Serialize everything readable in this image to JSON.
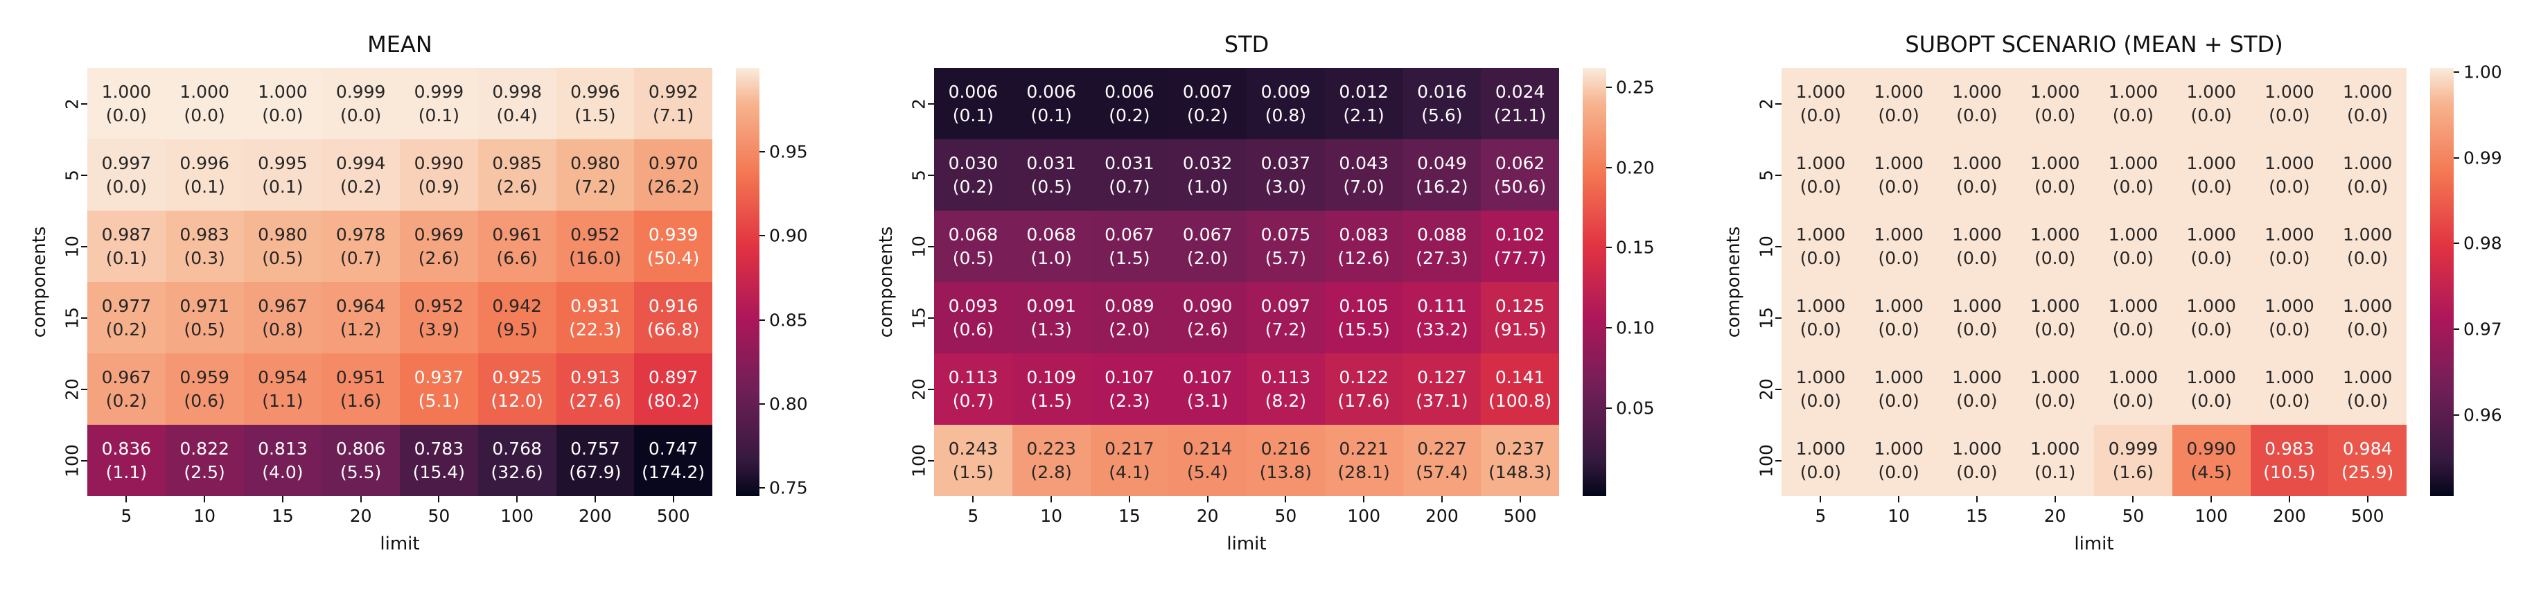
{
  "figure": {
    "background": "#ffffff"
  },
  "colormap": {
    "name": "rocket",
    "anchors": [
      [
        0.0,
        "#03051A"
      ],
      [
        0.083,
        "#35193E"
      ],
      [
        0.25,
        "#701F57"
      ],
      [
        0.417,
        "#AD1759"
      ],
      [
        0.583,
        "#E13342"
      ],
      [
        0.75,
        "#F37651"
      ],
      [
        0.917,
        "#F6B48F"
      ],
      [
        1.0,
        "#FAEBDD"
      ]
    ],
    "dark_text_color": "#262626",
    "light_text_color": "#ffffff",
    "text_switch_threshold": 0.764
  },
  "chart_data": {
    "type": "heatmap",
    "layout": "three panels side by side, shared axes categories, colorbar right of each panel",
    "x_categories": [
      "5",
      "10",
      "15",
      "20",
      "50",
      "100",
      "200",
      "500"
    ],
    "y_categories": [
      "2",
      "5",
      "10",
      "15",
      "20",
      "100"
    ],
    "annotation_format": "each cell shows value on line 1 and a parenthesized value on line 2",
    "panels": [
      {
        "title": "MEAN",
        "xlabel": "limit",
        "ylabel": "components",
        "values": [
          [
            "1.000",
            "1.000",
            "1.000",
            "0.999",
            "0.999",
            "0.998",
            "0.996",
            "0.992"
          ],
          [
            "0.997",
            "0.996",
            "0.995",
            "0.994",
            "0.990",
            "0.985",
            "0.980",
            "0.970"
          ],
          [
            "0.987",
            "0.983",
            "0.980",
            "0.978",
            "0.969",
            "0.961",
            "0.952",
            "0.939"
          ],
          [
            "0.977",
            "0.971",
            "0.967",
            "0.964",
            "0.952",
            "0.942",
            "0.931",
            "0.916"
          ],
          [
            "0.967",
            "0.959",
            "0.954",
            "0.951",
            "0.937",
            "0.925",
            "0.913",
            "0.897"
          ],
          [
            "0.836",
            "0.822",
            "0.813",
            "0.806",
            "0.783",
            "0.768",
            "0.757",
            "0.747"
          ]
        ],
        "annotations_line2": [
          [
            "(0.0)",
            "(0.0)",
            "(0.0)",
            "(0.0)",
            "(0.1)",
            "(0.4)",
            "(1.5)",
            "(7.1)"
          ],
          [
            "(0.0)",
            "(0.1)",
            "(0.1)",
            "(0.2)",
            "(0.9)",
            "(2.6)",
            "(7.2)",
            "(26.2)"
          ],
          [
            "(0.1)",
            "(0.3)",
            "(0.5)",
            "(0.7)",
            "(2.6)",
            "(6.6)",
            "(16.0)",
            "(50.4)"
          ],
          [
            "(0.2)",
            "(0.5)",
            "(0.8)",
            "(1.2)",
            "(3.9)",
            "(9.5)",
            "(22.3)",
            "(66.8)"
          ],
          [
            "(0.2)",
            "(0.6)",
            "(1.1)",
            "(1.6)",
            "(5.1)",
            "(12.0)",
            "(27.6)",
            "(80.2)"
          ],
          [
            "(1.1)",
            "(2.5)",
            "(4.0)",
            "(5.5)",
            "(15.4)",
            "(32.6)",
            "(67.9)",
            "(174.2)"
          ]
        ],
        "colorbar": {
          "vmin": 0.745,
          "vmax": 1.0,
          "ticks": [
            "0.95",
            "0.90",
            "0.85",
            "0.80",
            "0.75"
          ]
        }
      },
      {
        "title": "STD",
        "xlabel": "limit",
        "ylabel": "components",
        "values": [
          [
            "0.006",
            "0.006",
            "0.006",
            "0.007",
            "0.009",
            "0.012",
            "0.016",
            "0.024"
          ],
          [
            "0.030",
            "0.031",
            "0.031",
            "0.032",
            "0.037",
            "0.043",
            "0.049",
            "0.062"
          ],
          [
            "0.068",
            "0.068",
            "0.067",
            "0.067",
            "0.075",
            "0.083",
            "0.088",
            "0.102"
          ],
          [
            "0.093",
            "0.091",
            "0.089",
            "0.090",
            "0.097",
            "0.105",
            "0.111",
            "0.125"
          ],
          [
            "0.113",
            "0.109",
            "0.107",
            "0.107",
            "0.113",
            "0.122",
            "0.127",
            "0.141"
          ],
          [
            "0.243",
            "0.223",
            "0.217",
            "0.214",
            "0.216",
            "0.221",
            "0.227",
            "0.237"
          ]
        ],
        "annotations_line2": [
          [
            "(0.1)",
            "(0.1)",
            "(0.2)",
            "(0.2)",
            "(0.8)",
            "(2.1)",
            "(5.6)",
            "(21.1)"
          ],
          [
            "(0.2)",
            "(0.5)",
            "(0.7)",
            "(1.0)",
            "(3.0)",
            "(7.0)",
            "(16.2)",
            "(50.6)"
          ],
          [
            "(0.5)",
            "(1.0)",
            "(1.5)",
            "(2.0)",
            "(5.7)",
            "(12.6)",
            "(27.3)",
            "(77.7)"
          ],
          [
            "(0.6)",
            "(1.3)",
            "(2.0)",
            "(2.6)",
            "(7.2)",
            "(15.5)",
            "(33.2)",
            "(91.5)"
          ],
          [
            "(0.7)",
            "(1.5)",
            "(2.3)",
            "(3.1)",
            "(8.2)",
            "(17.6)",
            "(37.1)",
            "(100.8)"
          ],
          [
            "(1.5)",
            "(2.8)",
            "(4.1)",
            "(5.4)",
            "(13.8)",
            "(28.1)",
            "(57.4)",
            "(148.3)"
          ]
        ],
        "colorbar": {
          "vmin": -0.005,
          "vmax": 0.262,
          "ticks": [
            "0.25",
            "0.20",
            "0.15",
            "0.10",
            "0.05"
          ]
        }
      },
      {
        "title": "SUBOPT SCENARIO (MEAN + STD)",
        "xlabel": "limit",
        "ylabel": "components",
        "values": [
          [
            "1.000",
            "1.000",
            "1.000",
            "1.000",
            "1.000",
            "1.000",
            "1.000",
            "1.000"
          ],
          [
            "1.000",
            "1.000",
            "1.000",
            "1.000",
            "1.000",
            "1.000",
            "1.000",
            "1.000"
          ],
          [
            "1.000",
            "1.000",
            "1.000",
            "1.000",
            "1.000",
            "1.000",
            "1.000",
            "1.000"
          ],
          [
            "1.000",
            "1.000",
            "1.000",
            "1.000",
            "1.000",
            "1.000",
            "1.000",
            "1.000"
          ],
          [
            "1.000",
            "1.000",
            "1.000",
            "1.000",
            "1.000",
            "1.000",
            "1.000",
            "1.000"
          ],
          [
            "1.000",
            "1.000",
            "1.000",
            "1.000",
            "0.999",
            "0.990",
            "0.983",
            "0.984"
          ]
        ],
        "annotations_line2": [
          [
            "(0.0)",
            "(0.0)",
            "(0.0)",
            "(0.0)",
            "(0.0)",
            "(0.0)",
            "(0.0)",
            "(0.0)"
          ],
          [
            "(0.0)",
            "(0.0)",
            "(0.0)",
            "(0.0)",
            "(0.0)",
            "(0.0)",
            "(0.0)",
            "(0.0)"
          ],
          [
            "(0.0)",
            "(0.0)",
            "(0.0)",
            "(0.0)",
            "(0.0)",
            "(0.0)",
            "(0.0)",
            "(0.0)"
          ],
          [
            "(0.0)",
            "(0.0)",
            "(0.0)",
            "(0.0)",
            "(0.0)",
            "(0.0)",
            "(0.0)",
            "(0.0)"
          ],
          [
            "(0.0)",
            "(0.0)",
            "(0.0)",
            "(0.0)",
            "(0.0)",
            "(0.0)",
            "(0.0)",
            "(0.0)"
          ],
          [
            "(0.0)",
            "(0.0)",
            "(0.0)",
            "(0.1)",
            "(1.6)",
            "(4.5)",
            "(10.5)",
            "(25.9)"
          ]
        ],
        "colorbar": {
          "vmin": 0.9505,
          "vmax": 1.0005,
          "ticks": [
            "1.00",
            "0.99",
            "0.98",
            "0.97",
            "0.96"
          ]
        }
      }
    ]
  }
}
